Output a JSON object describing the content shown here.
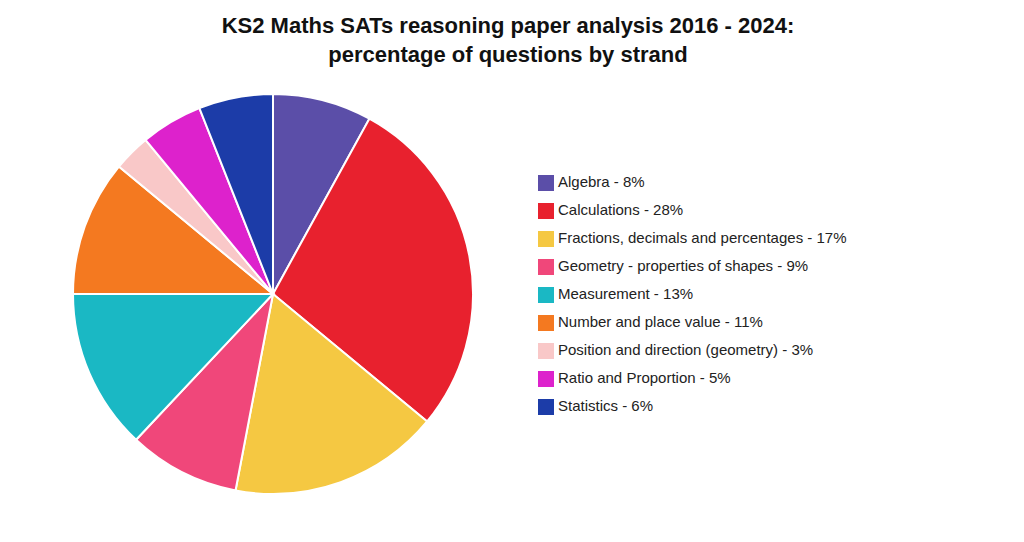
{
  "chart_data": {
    "type": "pie",
    "title": "KS2 Maths SATs reasoning paper analysis 2016 - 2024:",
    "subtitle": "percentage of questions by strand",
    "categories": [
      "Algebra - 8%",
      "Calculations - 28%",
      "Fractions, decimals and percentages - 17%",
      "Geometry - properties of shapes  - 9%",
      "Measurement - 13%",
      "Number and place value - 11%",
      "Position and direction (geometry) - 3%",
      "Ratio and Proportion - 5%",
      "Statistics - 6%"
    ],
    "values": [
      8,
      28,
      17,
      9,
      13,
      11,
      3,
      5,
      6
    ],
    "colors": [
      "#5b4ea8",
      "#e8212e",
      "#f5c842",
      "#f0477a",
      "#1ab8c4",
      "#f47920",
      "#f9c8c8",
      "#dd22cc",
      "#1c3ca8"
    ],
    "legend": "right"
  }
}
